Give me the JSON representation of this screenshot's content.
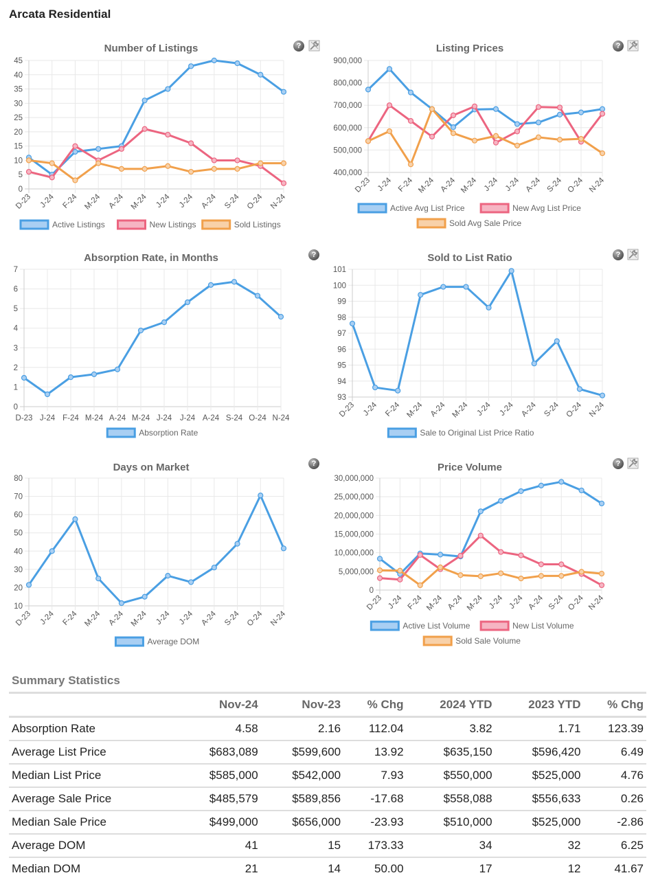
{
  "page": {
    "title": "Arcata Residential"
  },
  "months": [
    "D-23",
    "J-24",
    "F-24",
    "M-24",
    "A-24",
    "M-24",
    "J-24",
    "J-24",
    "A-24",
    "S-24",
    "O-24",
    "N-24"
  ],
  "colors": {
    "blue": "#4a9fe3",
    "red": "#ec6580",
    "orange": "#f1a04b",
    "blue_fill": "#a9cff3",
    "red_fill": "#f6b5c3",
    "orange_fill": "#f8d1a9"
  },
  "icons": {
    "help": "?",
    "help_name": "help-icon",
    "tool_name": "wrench-icon"
  },
  "chart_data": [
    {
      "id": "listings",
      "type": "line",
      "title": "Number of Listings",
      "categories": [
        "D-23",
        "J-24",
        "F-24",
        "M-24",
        "A-24",
        "M-24",
        "J-24",
        "J-24",
        "A-24",
        "S-24",
        "O-24",
        "N-24"
      ],
      "ylim": [
        0,
        45
      ],
      "yticks": [
        0,
        5,
        10,
        15,
        20,
        25,
        30,
        35,
        40,
        45
      ],
      "ytick_labels": [
        "0",
        "5",
        "10",
        "15",
        "20",
        "25",
        "30",
        "35",
        "40",
        "45"
      ],
      "xlabel_rotated": true,
      "grid": true,
      "legend": "bottom",
      "has_tool_icon": true,
      "series": [
        {
          "name": "Active Listings",
          "color": "blue",
          "values": [
            11,
            5,
            13,
            14,
            15,
            31,
            35,
            43,
            45,
            44,
            40,
            34
          ]
        },
        {
          "name": "New Listings",
          "color": "red",
          "values": [
            6,
            4,
            15,
            10,
            14,
            21,
            19,
            16,
            10,
            10,
            8,
            2
          ]
        },
        {
          "name": "Sold Listings",
          "color": "orange",
          "values": [
            10,
            9,
            3,
            9,
            7,
            7,
            8,
            6,
            7,
            7,
            9,
            9
          ]
        }
      ]
    },
    {
      "id": "prices",
      "type": "line",
      "title": "Listing Prices",
      "categories": [
        "D-23",
        "J-24",
        "F-24",
        "M-24",
        "A-24",
        "M-24",
        "J-24",
        "J-24",
        "A-24",
        "S-24",
        "O-24",
        "N-24"
      ],
      "ylim": [
        400000,
        900000
      ],
      "yticks": [
        400000,
        500000,
        600000,
        700000,
        800000,
        900000
      ],
      "ytick_labels": [
        "400,000",
        "500,000",
        "600,000",
        "700,000",
        "800,000",
        "900,000"
      ],
      "xlabel_rotated": true,
      "grid": true,
      "legend": "bottom",
      "has_tool_icon": true,
      "series": [
        {
          "name": "Active Avg List Price",
          "color": "blue",
          "values": [
            770000,
            862000,
            757000,
            683000,
            602000,
            681000,
            683000,
            616000,
            623000,
            658000,
            668000,
            683089
          ]
        },
        {
          "name": "New Avg List Price",
          "color": "red",
          "values": [
            540000,
            700000,
            630000,
            560000,
            655000,
            695000,
            533000,
            583000,
            692000,
            690000,
            537000,
            662000
          ]
        },
        {
          "name": "Sold Avg Sale Price",
          "color": "orange",
          "values": [
            540000,
            584000,
            436000,
            683000,
            575000,
            542000,
            563000,
            520000,
            557000,
            546000,
            550000,
            485579
          ]
        }
      ]
    },
    {
      "id": "absorption",
      "type": "line",
      "title": "Absorption Rate, in Months",
      "categories": [
        "D-23",
        "J-24",
        "F-24",
        "M-24",
        "A-24",
        "M-24",
        "J-24",
        "J-24",
        "A-24",
        "S-24",
        "O-24",
        "N-24"
      ],
      "ylim": [
        0,
        7
      ],
      "yticks": [
        0,
        1,
        2,
        3,
        4,
        5,
        6,
        7
      ],
      "ytick_labels": [
        "0",
        "1",
        "2",
        "3",
        "4",
        "5",
        "6",
        "7"
      ],
      "xlabel_rotated": false,
      "grid": true,
      "legend": "bottom",
      "has_tool_icon": false,
      "series": [
        {
          "name": "Absorption Rate",
          "color": "blue",
          "values": [
            1.47,
            0.63,
            1.5,
            1.65,
            1.9,
            3.88,
            4.3,
            5.32,
            6.2,
            6.36,
            5.65,
            4.58
          ]
        }
      ]
    },
    {
      "id": "ratio",
      "type": "line",
      "title": "Sold to List Ratio",
      "categories": [
        "D-23",
        "J-24",
        "F-24",
        "M-24",
        "A-24",
        "M-24",
        "J-24",
        "J-24",
        "A-24",
        "S-24",
        "O-24",
        "N-24"
      ],
      "ylim": [
        93,
        101
      ],
      "yticks": [
        93,
        94,
        95,
        96,
        97,
        98,
        99,
        100,
        101
      ],
      "ytick_labels": [
        "93",
        "94",
        "95",
        "96",
        "97",
        "98",
        "99",
        "100",
        "101"
      ],
      "xlabel_rotated": true,
      "grid": true,
      "legend": "bottom",
      "has_tool_icon": true,
      "series": [
        {
          "name": "Sale to Original List Price Ratio",
          "color": "blue",
          "values": [
            97.6,
            93.6,
            93.4,
            99.4,
            99.9,
            99.9,
            98.6,
            100.9,
            95.1,
            96.5,
            93.5,
            93.1
          ]
        }
      ]
    },
    {
      "id": "dom",
      "type": "line",
      "title": "Days on Market",
      "categories": [
        "D-23",
        "J-24",
        "F-24",
        "M-24",
        "A-24",
        "M-24",
        "J-24",
        "J-24",
        "A-24",
        "S-24",
        "O-24",
        "N-24"
      ],
      "ylim": [
        10,
        80
      ],
      "yticks": [
        10,
        20,
        30,
        40,
        50,
        60,
        70,
        80
      ],
      "ytick_labels": [
        "10",
        "20",
        "30",
        "40",
        "50",
        "60",
        "70",
        "80"
      ],
      "xlabel_rotated": true,
      "grid": true,
      "legend": "bottom",
      "has_tool_icon": false,
      "series": [
        {
          "name": "Average DOM",
          "color": "blue",
          "values": [
            21.5,
            40,
            57.5,
            25,
            11.5,
            15,
            26.5,
            23,
            31,
            44,
            70.5,
            41.5
          ]
        }
      ]
    },
    {
      "id": "volume",
      "type": "line",
      "title": "Price Volume",
      "categories": [
        "D-23",
        "J-24",
        "F-24",
        "M-24",
        "A-24",
        "M-24",
        "J-24",
        "J-24",
        "A-24",
        "S-24",
        "O-24",
        "N-24"
      ],
      "ylim": [
        0,
        30000000
      ],
      "yticks": [
        0,
        5000000,
        10000000,
        15000000,
        20000000,
        25000000,
        30000000
      ],
      "ytick_labels": [
        "0",
        "5,000,000",
        "10,000,000",
        "15,000,000",
        "20,000,000",
        "25,000,000",
        "30,000,000"
      ],
      "xlabel_rotated": true,
      "grid": true,
      "legend": "bottom",
      "has_tool_icon": true,
      "series": [
        {
          "name": "Active List Volume",
          "color": "blue",
          "values": [
            8400000,
            4300000,
            9800000,
            9500000,
            9000000,
            21100000,
            23900000,
            26500000,
            28000000,
            29000000,
            26700000,
            23200000
          ]
        },
        {
          "name": "New List Volume",
          "color": "red",
          "values": [
            3200000,
            2800000,
            9400000,
            5600000,
            9200000,
            14600000,
            10200000,
            9300000,
            6900000,
            6900000,
            4300000,
            1300000
          ]
        },
        {
          "name": "Sold Sale Volume",
          "color": "orange",
          "values": [
            5300000,
            5200000,
            1300000,
            6100000,
            4000000,
            3700000,
            4500000,
            3100000,
            3800000,
            3800000,
            4900000,
            4400000
          ]
        }
      ]
    }
  ],
  "summary": {
    "title": "Summary Statistics",
    "headers": [
      "",
      "Nov-24",
      "Nov-23",
      "% Chg",
      "2024 YTD",
      "2023 YTD",
      "% Chg"
    ],
    "rows": [
      [
        "Absorption Rate",
        "4.58",
        "2.16",
        "112.04",
        "3.82",
        "1.71",
        "123.39"
      ],
      [
        "Average List Price",
        "$683,089",
        "$599,600",
        "13.92",
        "$635,150",
        "$596,420",
        "6.49"
      ],
      [
        "Median List Price",
        "$585,000",
        "$542,000",
        "7.93",
        "$550,000",
        "$525,000",
        "4.76"
      ],
      [
        "Average Sale Price",
        "$485,579",
        "$589,856",
        "-17.68",
        "$558,088",
        "$556,633",
        "0.26"
      ],
      [
        "Median Sale Price",
        "$499,000",
        "$656,000",
        "-23.93",
        "$510,000",
        "$525,000",
        "-2.86"
      ],
      [
        "Average DOM",
        "41",
        "15",
        "173.33",
        "34",
        "32",
        "6.25"
      ],
      [
        "Median DOM",
        "21",
        "14",
        "50.00",
        "17",
        "12",
        "41.67"
      ]
    ]
  }
}
